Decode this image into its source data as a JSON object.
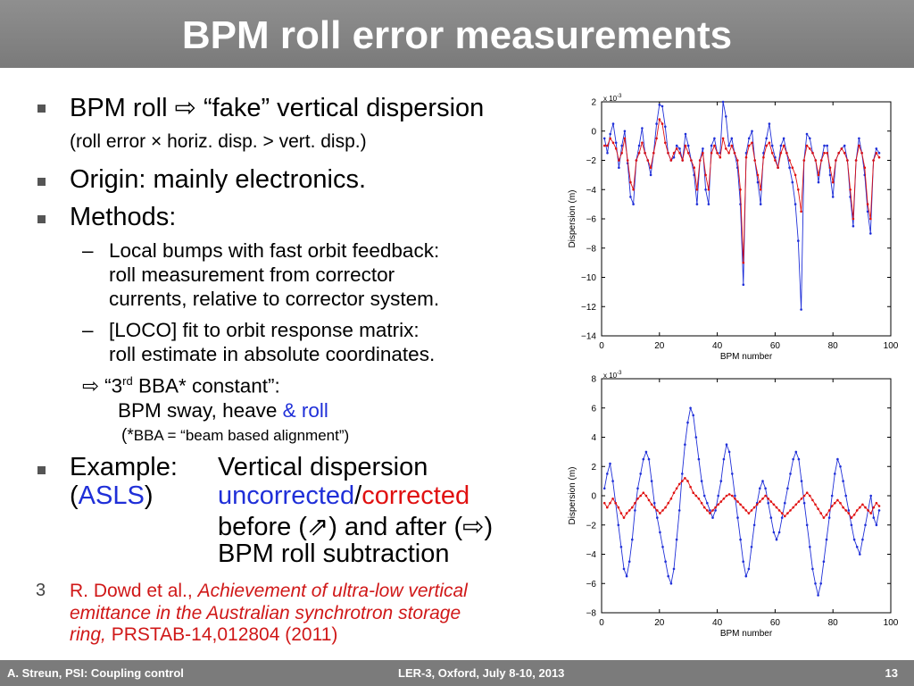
{
  "title": "BPM roll error measurements",
  "bullets": {
    "b1_main": "BPM roll ⇨ “fake” vertical dispersion",
    "b1_sub": "(roll error × horiz. disp. > vert. disp.)",
    "b2": "Origin: mainly electronics.",
    "b3": "Methods:",
    "m1_l1": "Local bumps with fast orbit feedback:",
    "m1_l2": "roll measurement from corrector",
    "m1_l3": "currents, relative to corrector system.",
    "m2_l1": "[LOCO] fit to orbit response matrix:",
    "m2_l2": "roll estimate in absolute coordinates.",
    "bba_pre": "⇨ “3",
    "bba_sup": "rd",
    "bba_post": " BBA* constant”:",
    "bba_l2a": "BPM sway, heave ",
    "bba_l2b": "& roll",
    "bba_note_star": "(*",
    "bba_note": "BBA = “beam based alignment”)",
    "ex_label": "Example:",
    "ex_l1": "Vertical dispersion",
    "ex_asls_open": "(",
    "ex_asls": "ASLS",
    "ex_asls_close": ")",
    "ex_uncorrected": "uncorrected",
    "ex_slash": "/",
    "ex_corrected": "corrected",
    "ex_l3": "before (⇗) and after (⇨)",
    "ex_l4": "BPM roll subtraction",
    "dash": "–"
  },
  "reference": {
    "marker": "3",
    "authors": "R. Dowd et al., ",
    "title_l1": "Achievement of ultra-low vertical",
    "title_l2": "emittance in the Australian synchrotron storage",
    "title_l3": "ring,",
    "journal": " PRSTAB-14,012804 (2011)"
  },
  "footer": {
    "left": "A. Streun, PSI: Coupling control",
    "center": "LER-3, Oxford, July 8-10, 2013",
    "right": "13"
  },
  "colors": {
    "uncorrected": "#1f2fd8",
    "corrected": "#e01010",
    "reference": "#d01818",
    "title_bar": "#858585"
  },
  "chart_data": [
    {
      "type": "line",
      "xlabel": "BPM number",
      "ylabel": "Dispersion (m)",
      "y_exponent": "x 10",
      "y_exponent_power": "-3",
      "xlim": [
        0,
        100
      ],
      "ylim": [
        -14,
        2
      ],
      "x_ticks": [
        "0",
        "20",
        "40",
        "60",
        "80",
        "100"
      ],
      "y_ticks": [
        "2",
        "0",
        "−2",
        "−4",
        "−6",
        "−8",
        "−10",
        "−12",
        "−14"
      ],
      "series": [
        {
          "color": "#1f2fd8",
          "values": [
            -0.5,
            -1.5,
            -0.2,
            0.5,
            -0.8,
            -2.5,
            -1.0,
            0.0,
            -2.2,
            -4.5,
            -5.0,
            -2.0,
            -1.0,
            0.2,
            -1.5,
            -2.0,
            -3.0,
            -1.5,
            0.5,
            1.8,
            1.7,
            0.3,
            -1.5,
            -2.0,
            -1.8,
            -1.0,
            -1.2,
            -2.0,
            -0.2,
            -1.0,
            -2.0,
            -3.0,
            -5.0,
            -2.0,
            -1.2,
            -4.0,
            -5.0,
            -1.0,
            -0.5,
            -1.5,
            -1.5,
            2.0,
            1.0,
            -1.0,
            -0.5,
            -1.5,
            -2.5,
            -5.0,
            -10.5,
            -1.5,
            -0.5,
            0.0,
            -2.0,
            -3.5,
            -5.0,
            -1.5,
            -0.5,
            0.5,
            -1.0,
            -1.8,
            -2.5,
            -1.0,
            -0.5,
            -1.5,
            -2.5,
            -3.5,
            -5.0,
            -7.5,
            -12.2,
            -2.0,
            -0.2,
            -0.5,
            -1.5,
            -2.0,
            -3.5,
            -2.0,
            -1.0,
            -1.0,
            -3.0,
            -4.5,
            -2.0,
            -1.5,
            -1.2,
            -1.0,
            -2.0,
            -4.5,
            -6.5,
            -2.0,
            -0.5,
            -1.5,
            -3.0,
            -5.5,
            -7.0,
            -2.0,
            -1.2,
            -1.5
          ]
        },
        {
          "color": "#e01010",
          "values": [
            -1.0,
            -1.0,
            -0.5,
            -0.8,
            -1.2,
            -2.0,
            -1.5,
            -0.5,
            -2.0,
            -3.5,
            -4.0,
            -2.0,
            -1.5,
            -0.8,
            -1.5,
            -2.0,
            -2.5,
            -1.5,
            -0.5,
            0.8,
            0.5,
            -0.8,
            -1.5,
            -2.0,
            -1.5,
            -1.2,
            -1.5,
            -2.0,
            -1.0,
            -1.5,
            -2.0,
            -2.5,
            -4.0,
            -2.0,
            -1.5,
            -3.0,
            -4.0,
            -1.5,
            -1.0,
            -1.5,
            -1.8,
            -0.5,
            -1.2,
            -1.5,
            -1.0,
            -1.5,
            -2.0,
            -4.0,
            -9.0,
            -1.8,
            -1.0,
            -0.8,
            -2.0,
            -3.0,
            -4.0,
            -1.8,
            -1.0,
            -0.8,
            -1.5,
            -2.0,
            -2.5,
            -1.5,
            -1.0,
            -1.5,
            -2.0,
            -2.5,
            -3.0,
            -4.0,
            -5.5,
            -2.0,
            -1.0,
            -1.2,
            -1.5,
            -2.0,
            -3.0,
            -2.0,
            -1.5,
            -1.5,
            -2.5,
            -3.5,
            -2.0,
            -1.5,
            -1.2,
            -1.5,
            -2.0,
            -4.0,
            -6.0,
            -2.0,
            -1.0,
            -1.5,
            -2.5,
            -5.0,
            -6.0,
            -2.0,
            -1.5,
            -1.8
          ]
        }
      ]
    },
    {
      "type": "line",
      "xlabel": "BPM number",
      "ylabel": "Dispersion (m)",
      "y_exponent": "x 10",
      "y_exponent_power": "-3",
      "xlim": [
        0,
        100
      ],
      "ylim": [
        -8,
        8
      ],
      "x_ticks": [
        "0",
        "20",
        "40",
        "60",
        "80",
        "100"
      ],
      "y_ticks": [
        "8",
        "6",
        "4",
        "2",
        "0",
        "−2",
        "−4",
        "−6",
        "−8"
      ],
      "series": [
        {
          "color": "#1f2fd8",
          "values": [
            0.5,
            1.5,
            2.2,
            1.0,
            -0.5,
            -2.0,
            -3.5,
            -5.0,
            -5.5,
            -4.5,
            -3.0,
            -1.0,
            0.5,
            1.5,
            2.5,
            3.0,
            2.5,
            1.0,
            -0.5,
            -1.5,
            -2.5,
            -3.5,
            -4.5,
            -5.5,
            -6.0,
            -5.0,
            -3.0,
            -1.0,
            1.5,
            3.5,
            5.0,
            6.0,
            5.5,
            4.0,
            2.5,
            1.0,
            0.0,
            -0.5,
            -1.0,
            -1.5,
            -1.0,
            0.0,
            1.0,
            2.5,
            3.5,
            3.0,
            1.5,
            0.0,
            -1.5,
            -3.0,
            -4.5,
            -5.5,
            -5.0,
            -3.5,
            -2.0,
            -0.5,
            0.5,
            1.0,
            0.5,
            -0.5,
            -1.5,
            -2.5,
            -3.0,
            -2.5,
            -1.5,
            -0.5,
            0.5,
            1.5,
            2.5,
            3.0,
            2.5,
            1.0,
            -0.5,
            -2.0,
            -3.5,
            -5.0,
            -6.0,
            -6.8,
            -6.0,
            -4.5,
            -3.0,
            -1.5,
            0.0,
            1.5,
            2.5,
            2.0,
            1.0,
            0.0,
            -1.0,
            -2.0,
            -3.0,
            -3.5,
            -4.0,
            -3.0,
            -2.0,
            -1.0,
            0.0,
            -1.5,
            -2.0,
            -1.0
          ]
        },
        {
          "color": "#e01010",
          "values": [
            -0.5,
            -0.8,
            -0.5,
            -0.2,
            -0.5,
            -0.8,
            -1.2,
            -1.5,
            -1.2,
            -1.0,
            -0.8,
            -0.5,
            -0.2,
            0.0,
            0.2,
            0.0,
            -0.3,
            -0.6,
            -0.8,
            -1.0,
            -1.2,
            -1.0,
            -0.8,
            -0.5,
            -0.2,
            0.2,
            0.5,
            0.8,
            1.0,
            1.2,
            1.0,
            0.6,
            0.2,
            0.0,
            -0.2,
            -0.5,
            -0.8,
            -1.0,
            -1.2,
            -1.0,
            -0.8,
            -0.6,
            -0.4,
            -0.2,
            0.0,
            0.1,
            0.0,
            -0.2,
            -0.4,
            -0.6,
            -0.8,
            -1.0,
            -1.2,
            -1.0,
            -0.8,
            -0.6,
            -0.4,
            -0.2,
            0.0,
            -0.2,
            -0.4,
            -0.6,
            -0.8,
            -1.0,
            -1.2,
            -1.4,
            -1.2,
            -1.0,
            -0.8,
            -0.6,
            -0.4,
            -0.2,
            0.0,
            0.2,
            0.0,
            -0.3,
            -0.6,
            -0.9,
            -1.2,
            -1.5,
            -1.3,
            -1.0,
            -0.7,
            -0.5,
            -0.3,
            -0.5,
            -0.8,
            -1.0,
            -1.2,
            -1.5,
            -1.3,
            -1.0,
            -0.8,
            -0.6,
            -0.8,
            -1.0,
            -1.2,
            -0.8,
            -0.5,
            -0.7
          ]
        }
      ]
    }
  ]
}
